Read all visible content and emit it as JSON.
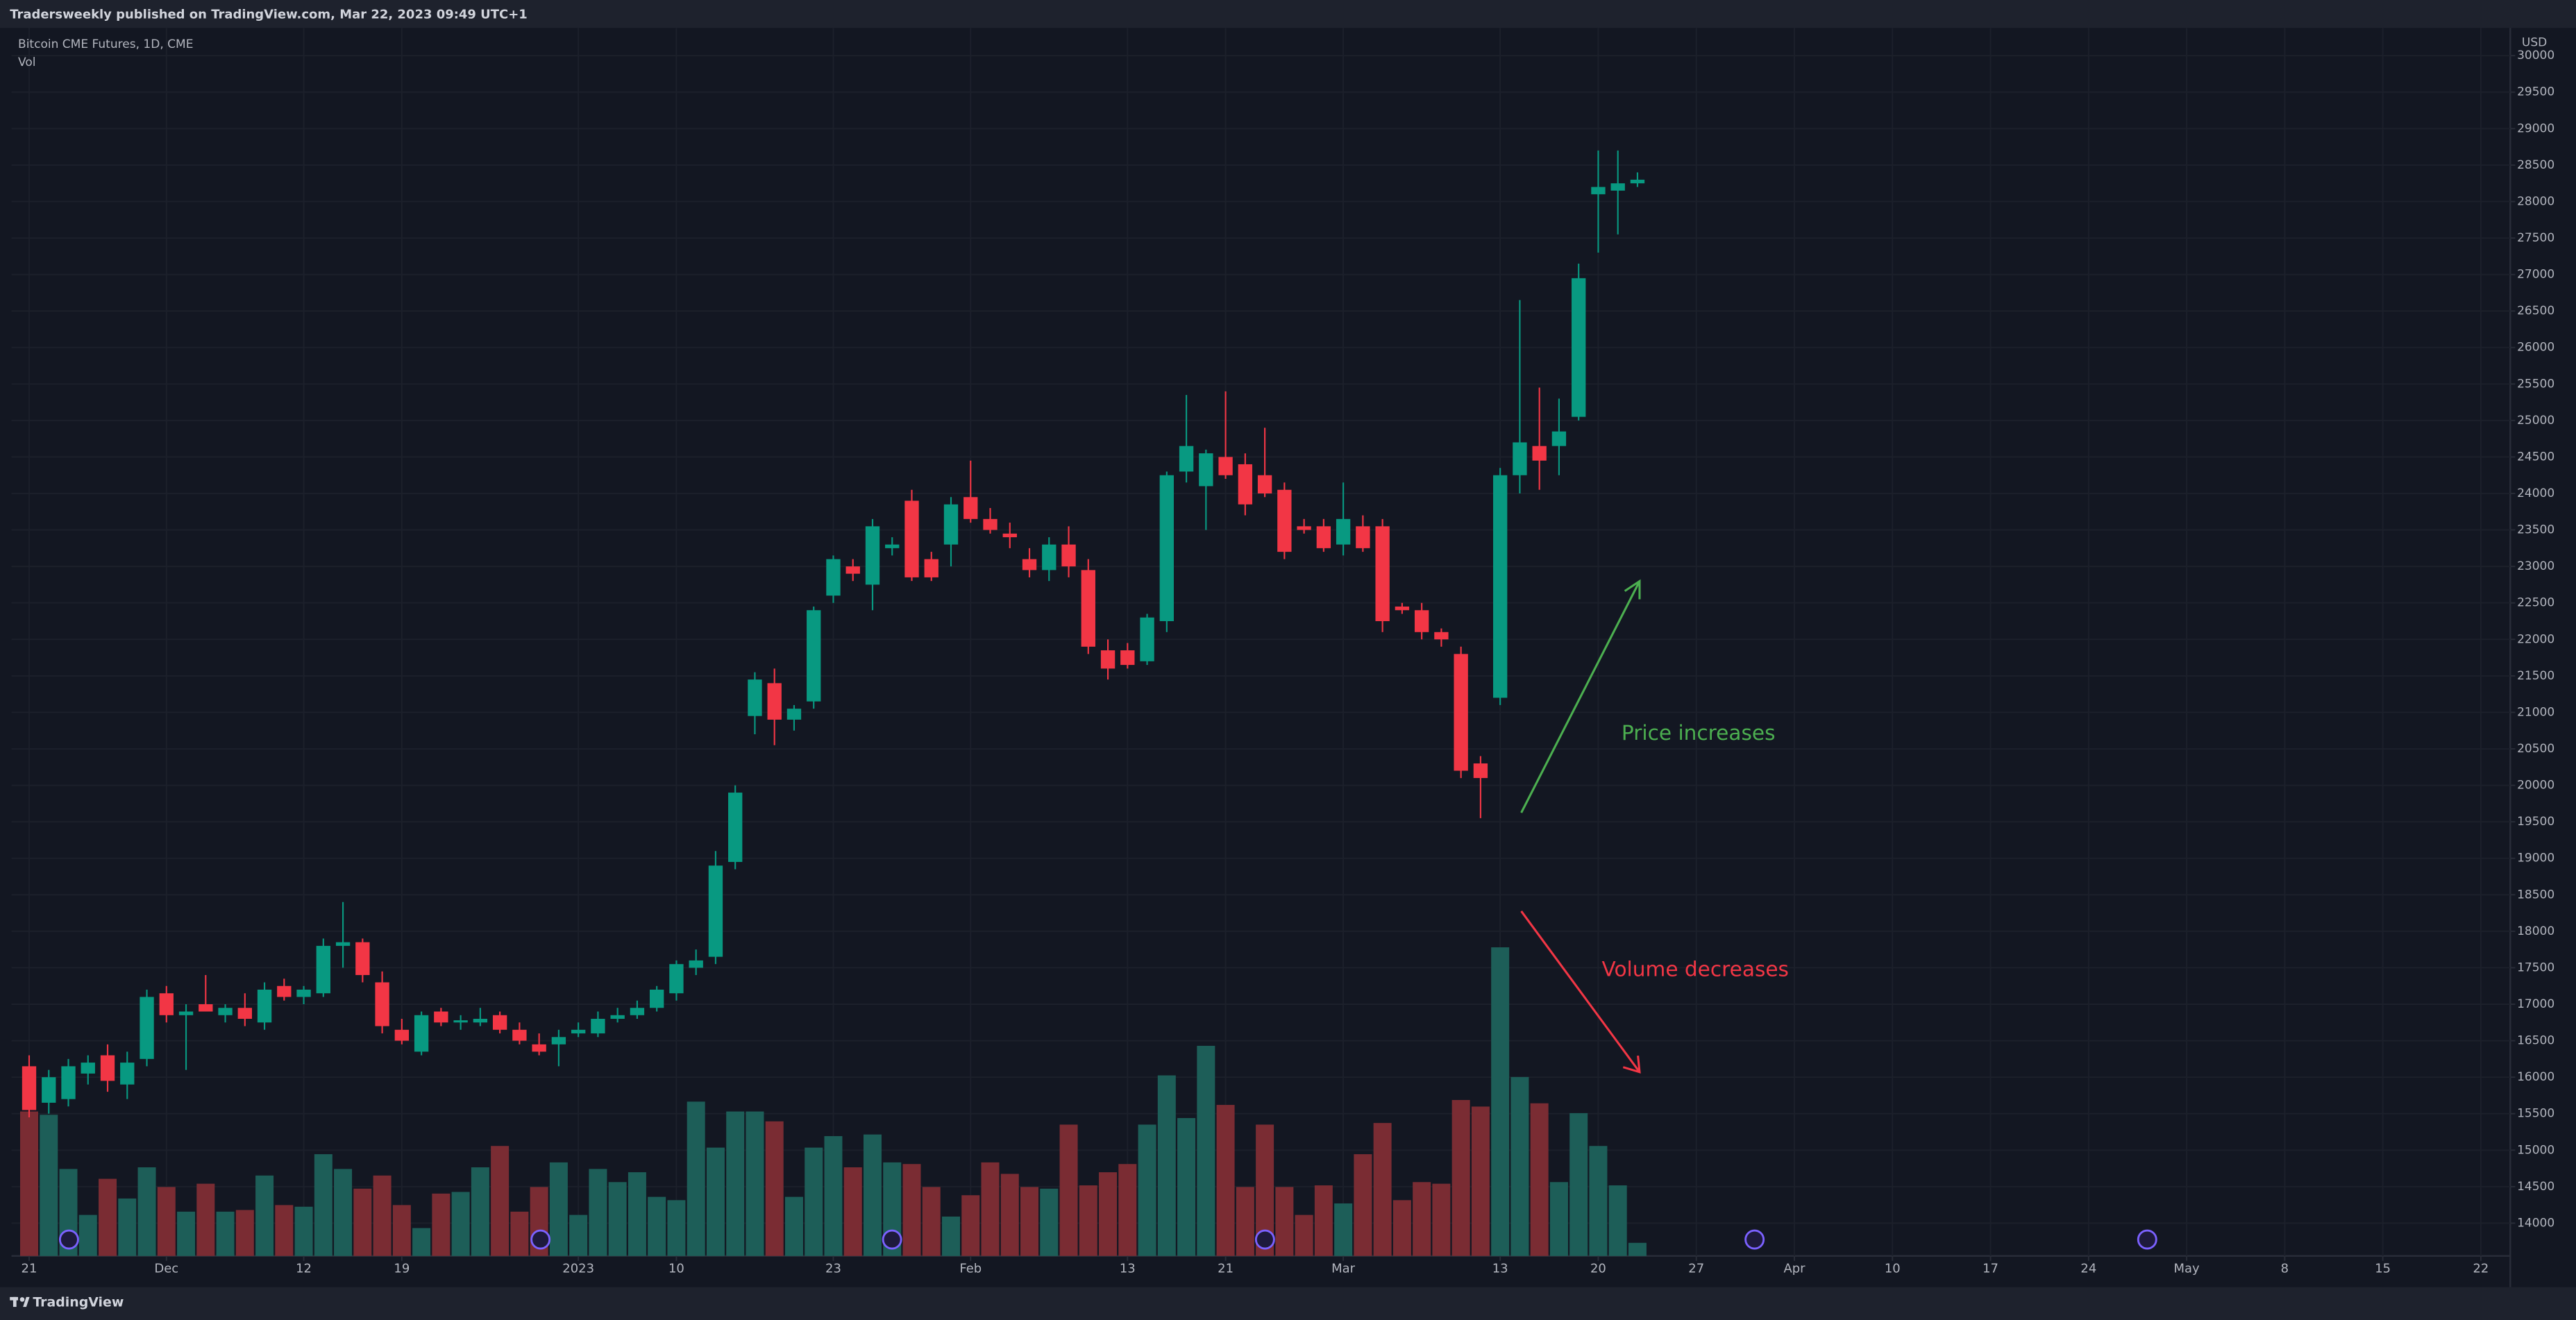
{
  "chart_data": {
    "type": "candlestick",
    "header": "Tradersweekly published on TradingView.com, Mar 22, 2023 09:49 UTC+1",
    "title": "Bitcoin CME Futures, 1D, CME",
    "volume_label": "Vol",
    "y_axis_label": "USD",
    "annotations": [
      {
        "text": "Price increases",
        "color": "#4caf50"
      },
      {
        "text": "Volume decreases",
        "color": "#f23645"
      }
    ],
    "up_color": "#089981",
    "down_color": "#f23645",
    "vol_up_color": "#1d5e58",
    "vol_down_color": "#7a2c33",
    "grid": true,
    "ylim": [
      13550,
      30380
    ],
    "yticks": [
      14000,
      14500,
      15000,
      15500,
      16000,
      16500,
      17000,
      17500,
      18000,
      18500,
      19000,
      19500,
      20000,
      20500,
      21000,
      21500,
      22000,
      22500,
      23000,
      23500,
      24000,
      24500,
      25000,
      25500,
      26000,
      26500,
      27000,
      27500,
      28000,
      28500,
      29000,
      29500,
      30000
    ],
    "vol_ylim": [
      0,
      20
    ],
    "xlim": [
      -0.9,
      126.5
    ],
    "xticks": [
      {
        "value": 0,
        "label": "21"
      },
      {
        "value": 7,
        "label": "Dec"
      },
      {
        "value": 14,
        "label": "12"
      },
      {
        "value": 19,
        "label": "19"
      },
      {
        "value": 28,
        "label": "2023"
      },
      {
        "value": 33,
        "label": "10"
      },
      {
        "value": 41,
        "label": "23"
      },
      {
        "value": 48,
        "label": "Feb"
      },
      {
        "value": 56,
        "label": "13"
      },
      {
        "value": 61,
        "label": "21"
      },
      {
        "value": 67,
        "label": "Mar"
      },
      {
        "value": 75,
        "label": "13"
      },
      {
        "value": 80,
        "label": "20"
      },
      {
        "value": 85,
        "label": "27"
      },
      {
        "value": 90,
        "label": "Apr"
      },
      {
        "value": 95,
        "label": "10"
      },
      {
        "value": 100,
        "label": "17"
      },
      {
        "value": 105,
        "label": "24"
      },
      {
        "value": 110,
        "label": "May"
      },
      {
        "value": 115,
        "label": "8"
      },
      {
        "value": 120,
        "label": "15"
      },
      {
        "value": 125,
        "label": "22"
      }
    ],
    "open": [
      16150,
      15650,
      15700,
      16050,
      16300,
      15900,
      16250,
      17150,
      16850,
      17000,
      16850,
      16950,
      16750,
      17250,
      17100,
      17150,
      17800,
      17850,
      17300,
      16650,
      16350,
      16900,
      16750,
      16750,
      16850,
      16650,
      16450,
      16450,
      16600,
      16600,
      16800,
      16850,
      16950,
      17150,
      17500,
      17650,
      18950,
      20950,
      21400,
      20900,
      21150,
      22600,
      23000,
      22750,
      23250,
      23900,
      23100,
      23300,
      23950,
      23650,
      23450,
      23100,
      22950,
      23300,
      22950,
      21850,
      21850,
      21700,
      22250,
      24300,
      24100,
      24500,
      24400,
      24250,
      24050,
      23550,
      23550,
      23300,
      23550,
      23550,
      22450,
      22400,
      22100,
      21800,
      20300,
      21200,
      24250,
      24650,
      24650,
      25050,
      28100,
      28150,
      28250
    ],
    "high": [
      16300,
      16100,
      16250,
      16300,
      16450,
      16350,
      17200,
      17250,
      17000,
      17400,
      17000,
      17150,
      17300,
      17350,
      17250,
      17900,
      18400,
      17900,
      17450,
      16800,
      16900,
      16950,
      16850,
      16950,
      16900,
      16750,
      16600,
      16650,
      16750,
      16900,
      16950,
      17050,
      17250,
      17600,
      17750,
      19100,
      20000,
      21550,
      21600,
      21100,
      22450,
      23150,
      23100,
      23650,
      23400,
      24050,
      23200,
      23950,
      24450,
      23800,
      23600,
      23250,
      23400,
      23550,
      23100,
      22000,
      21950,
      22350,
      24300,
      25350,
      24600,
      25400,
      24550,
      24900,
      24150,
      23650,
      23650,
      24150,
      23700,
      23650,
      22500,
      22500,
      22150,
      21900,
      20400,
      24350,
      26650,
      25450,
      25300,
      27150,
      28700,
      28700,
      28400
    ],
    "low": [
      15450,
      15500,
      15600,
      15900,
      15800,
      15700,
      16150,
      16750,
      16100,
      16900,
      16750,
      16700,
      16650,
      17050,
      17000,
      17100,
      17500,
      17300,
      16600,
      16450,
      16300,
      16700,
      16650,
      16700,
      16600,
      16450,
      16300,
      16150,
      16550,
      16550,
      16750,
      16800,
      16900,
      17050,
      17400,
      17550,
      18850,
      20700,
      20550,
      20750,
      21050,
      22500,
      22800,
      22400,
      23150,
      22800,
      22800,
      23000,
      23600,
      23450,
      23250,
      22850,
      22800,
      22850,
      21800,
      21450,
      21600,
      21650,
      22100,
      24150,
      23500,
      24200,
      23700,
      23950,
      23100,
      23450,
      23200,
      23150,
      23200,
      22100,
      22350,
      22000,
      21900,
      20100,
      19550,
      21100,
      24000,
      24050,
      24250,
      25000,
      27300,
      27550,
      28200
    ],
    "close": [
      15550,
      16000,
      16150,
      16200,
      15950,
      16200,
      17100,
      16850,
      16900,
      16900,
      16950,
      16800,
      17200,
      17100,
      17200,
      17800,
      17850,
      17400,
      16700,
      16500,
      16850,
      16750,
      16780,
      16800,
      16650,
      16500,
      16350,
      16550,
      16650,
      16800,
      16850,
      16950,
      17200,
      17550,
      17600,
      18900,
      19900,
      21450,
      20900,
      21050,
      22400,
      23100,
      22900,
      23550,
      23300,
      22850,
      22850,
      23850,
      23650,
      23500,
      23400,
      22950,
      23300,
      23000,
      21900,
      21600,
      21650,
      22300,
      24250,
      24650,
      24550,
      24250,
      23850,
      24000,
      23200,
      23500,
      23250,
      23650,
      23250,
      22250,
      22400,
      22100,
      22000,
      20200,
      20100,
      24250,
      24700,
      24450,
      24850,
      26950,
      28200,
      28250,
      28300
    ],
    "volume": [
      8.8,
      8.6,
      5.3,
      2.5,
      4.7,
      3.5,
      5.4,
      4.2,
      2.7,
      4.4,
      2.7,
      2.8,
      4.9,
      3.1,
      3.0,
      6.2,
      5.3,
      4.1,
      4.9,
      3.1,
      1.7,
      3.8,
      3.9,
      5.4,
      6.7,
      2.7,
      4.2,
      5.7,
      2.5,
      5.3,
      4.5,
      5.1,
      3.6,
      3.4,
      9.4,
      6.6,
      8.8,
      8.8,
      8.2,
      3.6,
      6.6,
      7.3,
      5.4,
      7.4,
      5.7,
      5.6,
      4.2,
      2.4,
      3.7,
      5.7,
      5.0,
      4.2,
      4.1,
      8.0,
      4.3,
      5.1,
      5.6,
      8.0,
      11.0,
      8.4,
      12.8,
      9.2,
      4.2,
      8.0,
      4.2,
      2.5,
      4.3,
      3.2,
      6.2,
      8.1,
      3.4,
      4.5,
      4.4,
      9.5,
      9.1,
      18.8,
      10.9,
      9.3,
      4.5,
      8.7,
      6.7,
      4.3,
      0.8
    ]
  },
  "footer": "TradingView"
}
